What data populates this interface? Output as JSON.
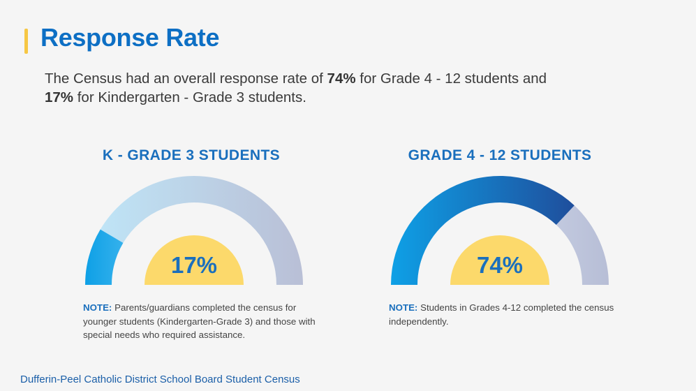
{
  "header": {
    "title": "Response Rate",
    "intro": {
      "part1": "The Census had an overall response rate of ",
      "value1": "74%",
      "part2": " for Grade 4 - 12 students and",
      "value2": "17%",
      "part3": " for Kindergarten - Grade 3 students."
    }
  },
  "chart_data": [
    {
      "type": "gauge",
      "title": "K - GRADE 3 STUDENTS",
      "value": 17,
      "label": "17%",
      "range": [
        0,
        100
      ],
      "note_label": "NOTE:",
      "note_text": " Parents/guardians completed the census for younger students (Kindergarten-Grade 3) and those with special needs who required assistance."
    },
    {
      "type": "gauge",
      "title": "GRADE 4 - 12 STUDENTS",
      "value": 74,
      "label": "74%",
      "range": [
        0,
        100
      ],
      "note_label": "NOTE:",
      "note_text": " Students in Grades 4-12 completed the census independently."
    }
  ],
  "footer": {
    "text": "Dufferin-Peel Catholic District School Board Student Census"
  },
  "colors": {
    "title": "#0d6fc4",
    "accent_bar": "#f6c744",
    "center_fill": "#fcd96b",
    "value_text": "#1a6fbd"
  }
}
